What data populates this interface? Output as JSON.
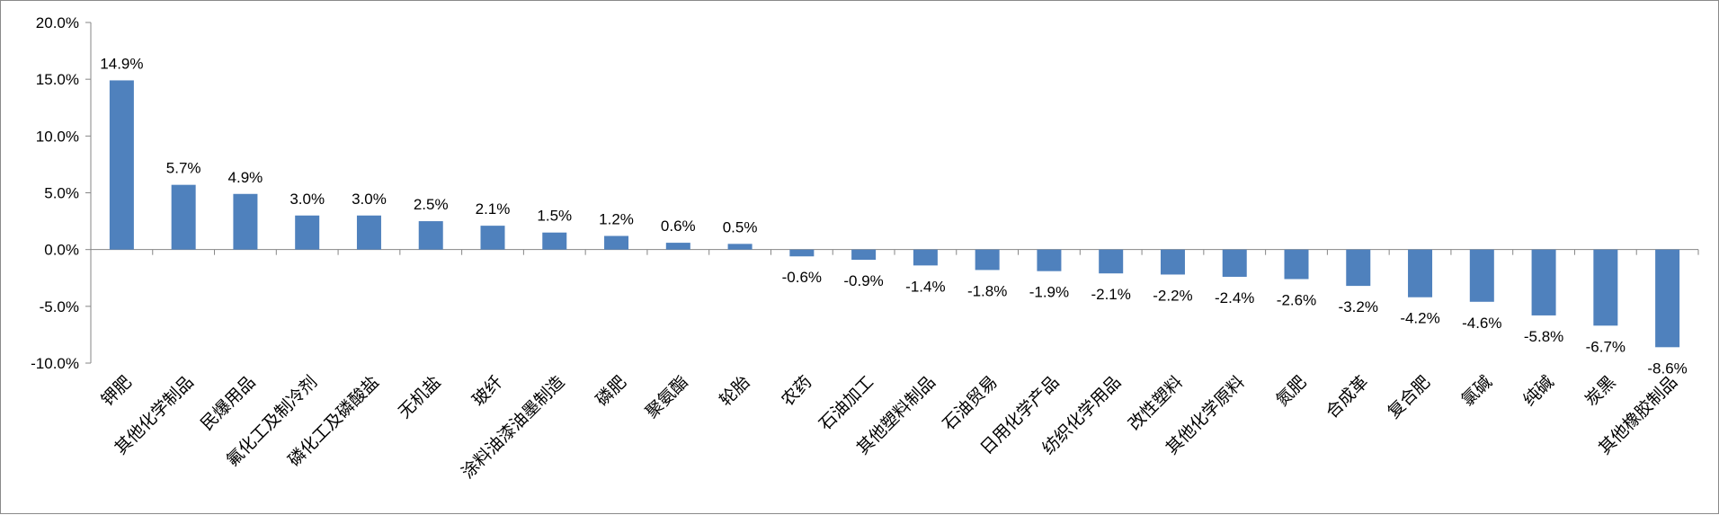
{
  "chart_data": {
    "type": "bar",
    "title": "",
    "xlabel": "",
    "ylabel": "",
    "ylim": [
      -10.0,
      20.0
    ],
    "yticks": [
      20.0,
      15.0,
      10.0,
      5.0,
      0.0,
      -5.0,
      -10.0
    ],
    "ytick_labels": [
      "20.0%",
      "15.0%",
      "10.0%",
      "5.0%",
      "0.0%",
      "-5.0%",
      "-10.0%"
    ],
    "grid": false,
    "legend": "none",
    "bar_color": "#4f81bd",
    "categories": [
      "钾肥",
      "其他化学制品",
      "民爆用品",
      "氟化工及制冷剂",
      "磷化工及磷酸盐",
      "无机盐",
      "玻纤",
      "涂料油漆油墨制造",
      "磷肥",
      "聚氨酯",
      "轮胎",
      "农药",
      "石油加工",
      "其他塑料制品",
      "石油贸易",
      "日用化学产品",
      "纺织化学用品",
      "改性塑料",
      "其他化学原料",
      "氮肥",
      "合成革",
      "复合肥",
      "氯碱",
      "纯碱",
      "炭黑",
      "其他橡胶制品"
    ],
    "values": [
      14.9,
      5.7,
      4.9,
      3.0,
      3.0,
      2.5,
      2.1,
      1.5,
      1.2,
      0.6,
      0.5,
      -0.6,
      -0.9,
      -1.4,
      -1.8,
      -1.9,
      -2.1,
      -2.2,
      -2.4,
      -2.6,
      -3.2,
      -4.2,
      -4.6,
      -5.8,
      -6.7,
      -8.6
    ],
    "data_labels": [
      "14.9%",
      "5.7%",
      "4.9%",
      "3.0%",
      "3.0%",
      "2.5%",
      "2.1%",
      "1.5%",
      "1.2%",
      "0.6%",
      "0.5%",
      "-0.6%",
      "-0.9%",
      "-1.4%",
      "-1.8%",
      "-1.9%",
      "-2.1%",
      "-2.2%",
      "-2.4%",
      "-2.6%",
      "-3.2%",
      "-4.2%",
      "-4.6%",
      "-5.8%",
      "-6.7%",
      "-8.6%"
    ]
  }
}
